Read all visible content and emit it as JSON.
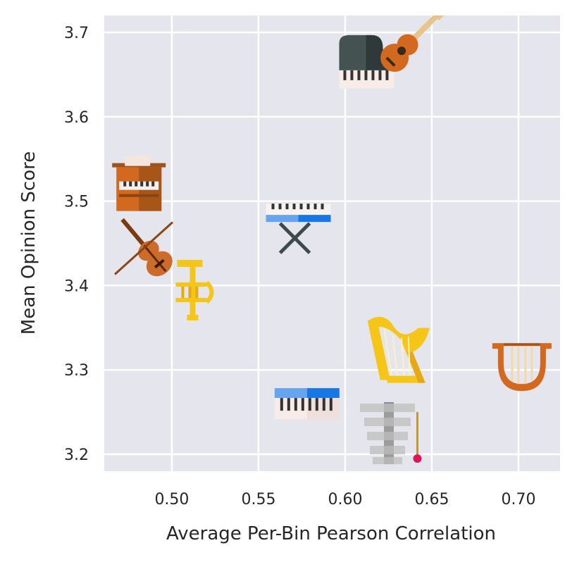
{
  "chart_data": {
    "type": "scatter",
    "title": "",
    "xlabel": "Average Per-Bin Pearson Correlation",
    "ylabel": "Mean Opinion Score",
    "xlim": [
      0.461,
      0.724
    ],
    "ylim": [
      3.18,
      3.72
    ],
    "xticks": [
      "0.50",
      "0.55",
      "0.60",
      "0.65",
      "0.70"
    ],
    "yticks": [
      "3.2",
      "3.3",
      "3.4",
      "3.5",
      "3.6",
      "3.7"
    ],
    "grid": true,
    "background_color": "#e5e5ee",
    "marker_style": "instrument icons",
    "points": [
      {
        "icon": "organ-icon",
        "x": 0.481,
        "y": 3.515
      },
      {
        "icon": "violin-icon",
        "x": 0.485,
        "y": 3.445
      },
      {
        "icon": "trumpet-icon",
        "x": 0.512,
        "y": 3.392
      },
      {
        "icon": "electric-keyboard-icon",
        "x": 0.573,
        "y": 3.472
      },
      {
        "icon": "grand-piano-icon",
        "x": 0.612,
        "y": 3.645
      },
      {
        "icon": "guitar-icon",
        "x": 0.632,
        "y": 3.677
      },
      {
        "icon": "harp-icon",
        "x": 0.63,
        "y": 3.318
      },
      {
        "icon": "lyre-icon",
        "x": 0.702,
        "y": 3.305
      },
      {
        "icon": "synthesizer-icon",
        "x": 0.578,
        "y": 3.26
      },
      {
        "icon": "xylophone-icon",
        "x": 0.624,
        "y": 3.225
      }
    ]
  }
}
